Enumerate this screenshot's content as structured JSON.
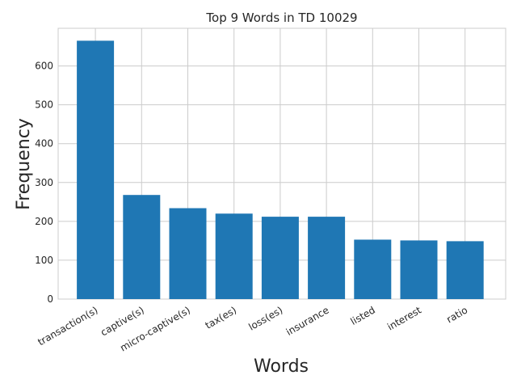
{
  "chart_data": {
    "type": "bar",
    "title": "Top 9 Words in TD 10029",
    "xlabel": "Words",
    "ylabel": "Frequency",
    "categories": [
      "transaction(s)",
      "captive(s)",
      "micro-captive(s)",
      "tax(es)",
      "loss(es)",
      "insurance",
      "listed",
      "interest",
      "ratio"
    ],
    "values": [
      665,
      268,
      234,
      220,
      212,
      212,
      153,
      151,
      149
    ],
    "yticks": [
      0,
      100,
      200,
      300,
      400,
      500,
      600
    ],
    "ylim": [
      0,
      697
    ],
    "grid": true,
    "bar_color": "#1f77b4"
  }
}
